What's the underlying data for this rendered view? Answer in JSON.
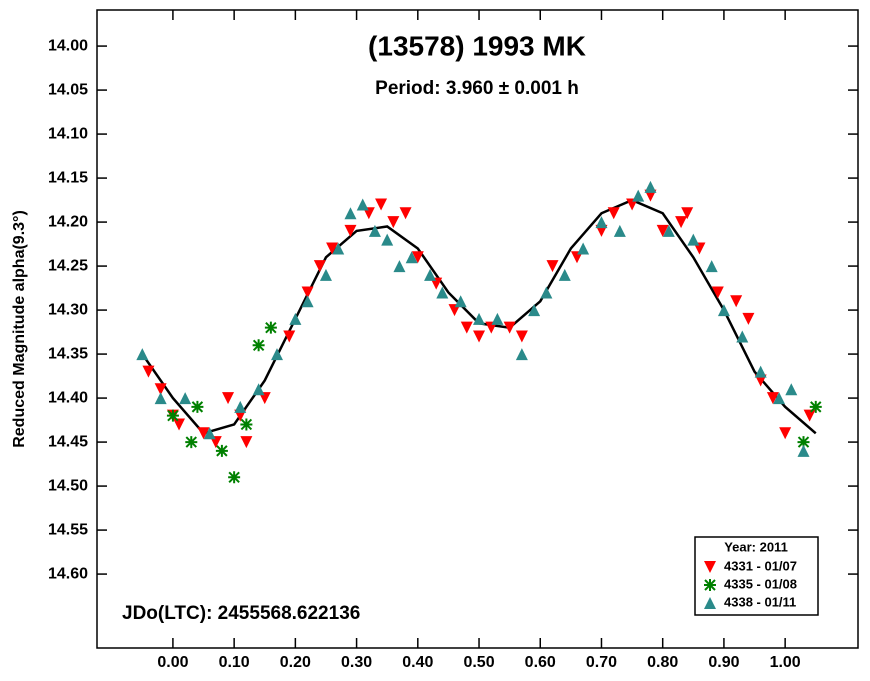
{
  "chart_data": {
    "type": "scatter",
    "title": "(13578) 1993 MK",
    "subtitle": "Period: 3.960 ± 0.001 h",
    "ylabel": "Reduced Magnitude alpha(9.3°)",
    "annotation": "JDo(LTC): 2455568.622136",
    "legend_title": "Year: 2011",
    "legend": "lower right",
    "y_inverted": true,
    "xlim": [
      -0.124,
      1.119
    ],
    "ylim": [
      13.959,
      14.684
    ],
    "xticks": [
      {
        "value": 0,
        "label": "0.00"
      },
      {
        "value": 0.1,
        "label": "0.10"
      },
      {
        "value": 0.2,
        "label": "0.20"
      },
      {
        "value": 0.3,
        "label": "0.30"
      },
      {
        "value": 0.4,
        "label": "0.40"
      },
      {
        "value": 0.5,
        "label": "0.50"
      },
      {
        "value": 0.6,
        "label": "0.60"
      },
      {
        "value": 0.7,
        "label": "0.70"
      },
      {
        "value": 0.8,
        "label": "0.80"
      },
      {
        "value": 0.9,
        "label": "0.90"
      },
      {
        "value": 1,
        "label": "1.00"
      }
    ],
    "yticks": [
      {
        "value": 14,
        "label": "14.00"
      },
      {
        "value": 14.05,
        "label": "14.05"
      },
      {
        "value": 14.1,
        "label": "14.10"
      },
      {
        "value": 14.15,
        "label": "14.15"
      },
      {
        "value": 14.2,
        "label": "14.20"
      },
      {
        "value": 14.25,
        "label": "14.25"
      },
      {
        "value": 14.3,
        "label": "14.30"
      },
      {
        "value": 14.35,
        "label": "14.35"
      },
      {
        "value": 14.4,
        "label": "14.40"
      },
      {
        "value": 14.45,
        "label": "14.45"
      },
      {
        "value": 14.5,
        "label": "14.50"
      },
      {
        "value": 14.55,
        "label": "14.55"
      },
      {
        "value": 14.6,
        "label": "14.60"
      }
    ],
    "series": [
      {
        "name": "4331 - 01/07",
        "color": "#ff0000",
        "marker": "triangle-down",
        "x": [
          -0.04,
          -0.02,
          0.0,
          0.01,
          0.05,
          0.07,
          0.09,
          0.11,
          0.12,
          0.15,
          0.19,
          0.22,
          0.24,
          0.26,
          0.29,
          0.32,
          0.34,
          0.36,
          0.38,
          0.4,
          0.43,
          0.46,
          0.48,
          0.5,
          0.52,
          0.55,
          0.57,
          0.62,
          0.66,
          0.7,
          0.72,
          0.75,
          0.78,
          0.8,
          0.83,
          0.84,
          0.86,
          0.89,
          0.92,
          0.94,
          0.96,
          0.98,
          1.0,
          1.04
        ],
        "values": [
          14.37,
          14.39,
          14.42,
          14.43,
          14.44,
          14.45,
          14.4,
          14.42,
          14.45,
          14.4,
          14.33,
          14.28,
          14.25,
          14.23,
          14.21,
          14.19,
          14.18,
          14.2,
          14.19,
          14.24,
          14.27,
          14.3,
          14.32,
          14.33,
          14.32,
          14.32,
          14.33,
          14.25,
          14.24,
          14.21,
          14.19,
          14.18,
          14.17,
          14.21,
          14.2,
          14.19,
          14.23,
          14.28,
          14.29,
          14.31,
          14.38,
          14.4,
          14.44,
          14.42
        ]
      },
      {
        "name": "4335 - 01/08",
        "color": "#008000",
        "marker": "asterisk",
        "x": [
          0.0,
          0.03,
          0.04,
          0.08,
          0.1,
          0.12,
          0.14,
          0.16,
          1.03,
          1.05
        ],
        "values": [
          14.42,
          14.45,
          14.41,
          14.46,
          14.49,
          14.43,
          14.34,
          14.32,
          14.45,
          14.41
        ]
      },
      {
        "name": "4338 - 01/11",
        "color": "#2a8a8a",
        "marker": "triangle-up",
        "x": [
          -0.05,
          -0.02,
          0.02,
          0.06,
          0.11,
          0.14,
          0.17,
          0.2,
          0.22,
          0.25,
          0.27,
          0.29,
          0.31,
          0.33,
          0.35,
          0.37,
          0.39,
          0.42,
          0.44,
          0.47,
          0.5,
          0.53,
          0.57,
          0.59,
          0.61,
          0.64,
          0.67,
          0.7,
          0.73,
          0.76,
          0.78,
          0.81,
          0.85,
          0.88,
          0.9,
          0.93,
          0.96,
          0.99,
          1.01,
          1.03
        ],
        "values": [
          14.35,
          14.4,
          14.4,
          14.44,
          14.41,
          14.39,
          14.35,
          14.31,
          14.29,
          14.26,
          14.23,
          14.19,
          14.18,
          14.21,
          14.22,
          14.25,
          14.24,
          14.26,
          14.28,
          14.29,
          14.31,
          14.31,
          14.35,
          14.3,
          14.28,
          14.26,
          14.23,
          14.2,
          14.21,
          14.17,
          14.16,
          14.21,
          14.22,
          14.25,
          14.3,
          14.33,
          14.37,
          14.4,
          14.39,
          14.46
        ]
      }
    ],
    "fit_curve": {
      "color": "#000000",
      "x": [
        -0.05,
        0.0,
        0.05,
        0.1,
        0.15,
        0.2,
        0.25,
        0.3,
        0.35,
        0.4,
        0.45,
        0.5,
        0.55,
        0.6,
        0.65,
        0.7,
        0.75,
        0.8,
        0.85,
        0.9,
        0.95,
        1.0,
        1.05
      ],
      "values": [
        14.35,
        14.4,
        14.44,
        14.43,
        14.38,
        14.31,
        14.24,
        14.21,
        14.205,
        14.23,
        14.28,
        14.315,
        14.32,
        14.29,
        14.23,
        14.19,
        14.175,
        14.19,
        14.24,
        14.3,
        14.37,
        14.41,
        14.44
      ]
    }
  }
}
